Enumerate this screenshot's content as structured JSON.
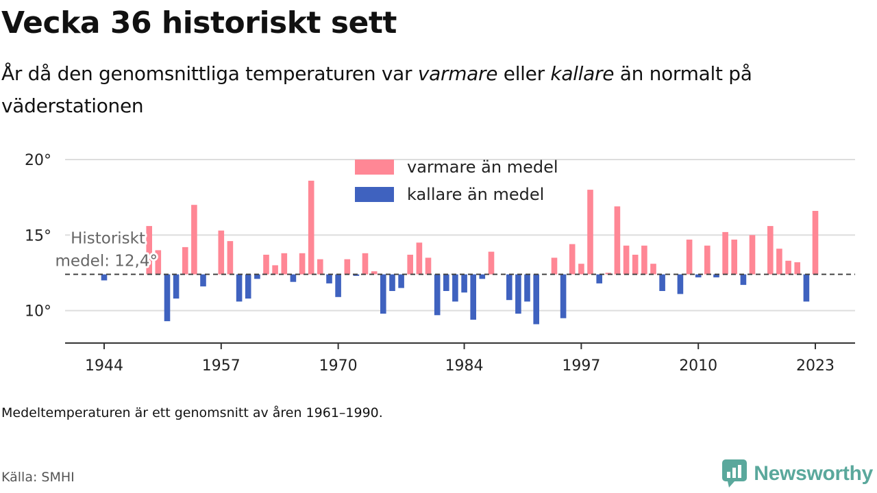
{
  "header": {
    "title": "Vecka 36 historiskt sett",
    "subtitle_pre": "År då den genomsnittliga temperaturen var ",
    "subtitle_warm": "varmare",
    "subtitle_mid": " eller ",
    "subtitle_cold": "kallare",
    "subtitle_post": " än normalt på väderstationen"
  },
  "footer": {
    "note": "Medeltemperaturen är ett genomsnitt av åren 1961–1990.",
    "source": "Källa: SMHI",
    "brand": "Newsworthy"
  },
  "colors": {
    "warm": "#ff8795",
    "cold": "#3f62bf",
    "grid": "#dddddd",
    "axis": "#333333",
    "average_line": "#444444",
    "brand": "#5aa89c"
  },
  "chart_data": {
    "type": "bar",
    "baseline": 12.4,
    "baseline_label_line1": "Historiskt",
    "baseline_label_line2": "medel: 12,4°",
    "ylim": [
      7.8,
      20.2
    ],
    "yticks": [
      10,
      15,
      20
    ],
    "ytick_labels": [
      "10°",
      "15°",
      "20°"
    ],
    "xticks": [
      1944,
      1957,
      1970,
      1984,
      1997,
      2010,
      2023
    ],
    "xtick_labels": [
      "1944",
      "1957",
      "1970",
      "1984",
      "1997",
      "2010",
      "2023"
    ],
    "xlim": [
      1943.5,
      2027
    ],
    "legend": {
      "position": "top-center",
      "warm_label": "varmare än medel",
      "cold_label": "kallare än medel"
    },
    "years": [
      1944,
      1945,
      1946,
      1947,
      1948,
      1949,
      1950,
      1951,
      1952,
      1953,
      1954,
      1955,
      1956,
      1957,
      1958,
      1959,
      1960,
      1961,
      1962,
      1963,
      1964,
      1965,
      1966,
      1967,
      1968,
      1969,
      1970,
      1971,
      1972,
      1973,
      1974,
      1975,
      1976,
      1977,
      1978,
      1979,
      1980,
      1981,
      1982,
      1983,
      1984,
      1985,
      1986,
      1987,
      1988,
      1989,
      1990,
      1991,
      1992,
      1993,
      1994,
      1995,
      1996,
      1997,
      1998,
      1999,
      2000,
      2001,
      2002,
      2003,
      2004,
      2005,
      2006,
      2007,
      2008,
      2009,
      2010,
      2011,
      2012,
      2013,
      2014,
      2015,
      2016,
      2017,
      2018,
      2019,
      2020,
      2021,
      2022,
      2023
    ],
    "values": [
      12.0,
      null,
      null,
      null,
      null,
      15.6,
      14.0,
      9.3,
      10.8,
      14.2,
      17.0,
      11.6,
      null,
      15.3,
      14.6,
      10.6,
      10.8,
      12.1,
      13.7,
      13.0,
      13.8,
      11.9,
      13.8,
      18.6,
      13.4,
      11.8,
      10.9,
      13.4,
      12.3,
      13.8,
      12.6,
      9.8,
      11.3,
      11.5,
      13.7,
      14.5,
      13.5,
      9.7,
      11.3,
      10.6,
      11.2,
      9.4,
      12.1,
      13.9,
      null,
      10.7,
      9.8,
      10.6,
      9.1,
      null,
      13.5,
      9.5,
      14.4,
      13.1,
      18.0,
      11.8,
      12.5,
      16.9,
      14.3,
      13.7,
      14.3,
      13.1,
      11.3,
      null,
      11.1,
      14.7,
      12.2,
      14.3,
      12.2,
      15.2,
      14.7,
      11.7,
      15.0,
      null,
      15.6,
      14.1,
      13.3,
      13.2,
      10.6,
      16.6
    ]
  }
}
